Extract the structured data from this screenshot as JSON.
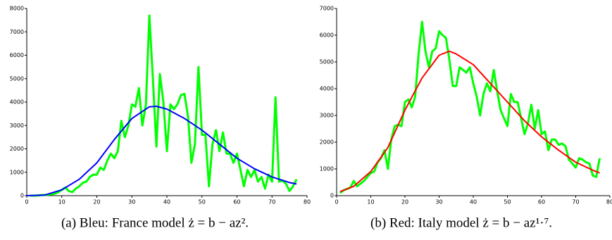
{
  "chart_data": [
    {
      "type": "line",
      "caption": "(a) Bleu: France model ż = b − az².",
      "xlim": [
        0,
        80
      ],
      "xticks": [
        0,
        10,
        20,
        30,
        40,
        50,
        60,
        70,
        80
      ],
      "ylim": [
        0,
        8000
      ],
      "yticks": [
        0,
        1000,
        2000,
        3000,
        4000,
        5000,
        6000,
        7000,
        8000
      ],
      "series": [
        {
          "color": "#0000ff",
          "x": [
            0,
            5,
            10,
            15,
            20,
            25,
            30,
            35,
            37,
            40,
            45,
            50,
            55,
            60,
            65,
            70,
            75,
            77
          ],
          "values": [
            0,
            20,
            250,
            700,
            1400,
            2400,
            3300,
            3800,
            3820,
            3700,
            3300,
            2800,
            2200,
            1600,
            1150,
            800,
            560,
            500
          ]
        },
        {
          "color": "#00ff00",
          "x": [
            1,
            2,
            3,
            4,
            5,
            6,
            7,
            8,
            9,
            10,
            11,
            12,
            13,
            14,
            15,
            16,
            17,
            18,
            19,
            20,
            21,
            22,
            23,
            24,
            25,
            26,
            27,
            28,
            29,
            30,
            31,
            32,
            33,
            34,
            35,
            36,
            37,
            38,
            39,
            40,
            41,
            42,
            43,
            44,
            45,
            46,
            47,
            48,
            49,
            50,
            51,
            52,
            53,
            54,
            55,
            56,
            57,
            58,
            59,
            60,
            61,
            62,
            63,
            64,
            65,
            66,
            67,
            68,
            69,
            70,
            71,
            72,
            73,
            74,
            75,
            76,
            77
          ],
          "values": [
            0,
            0,
            10,
            20,
            30,
            40,
            60,
            80,
            150,
            250,
            350,
            200,
            150,
            300,
            400,
            550,
            600,
            800,
            900,
            900,
            1200,
            1100,
            1500,
            1800,
            1600,
            1900,
            3200,
            2500,
            3000,
            3900,
            3800,
            4600,
            3000,
            3900,
            7700,
            5000,
            2100,
            5200,
            4000,
            1900,
            3900,
            3700,
            3900,
            4300,
            4350,
            3400,
            1400,
            2200,
            5500,
            2600,
            2600,
            400,
            2200,
            2800,
            1900,
            2700,
            1800,
            1800,
            1400,
            1800,
            1100,
            400,
            1100,
            800,
            1100,
            600,
            800,
            300,
            900,
            600,
            4200,
            600,
            650,
            500,
            200,
            400,
            700
          ]
        }
      ]
    },
    {
      "type": "line",
      "caption": "(b) Red: Italy model ż = b − az¹·⁷.",
      "xlim": [
        0,
        80
      ],
      "xticks": [
        0,
        10,
        20,
        30,
        40,
        50,
        60,
        70,
        80
      ],
      "ylim": [
        0,
        7000
      ],
      "yticks": [
        0,
        1000,
        2000,
        3000,
        4000,
        5000,
        6000,
        7000
      ],
      "series": [
        {
          "color": "#ff0000",
          "x": [
            1,
            5,
            10,
            15,
            20,
            25,
            30,
            33,
            35,
            40,
            45,
            50,
            55,
            60,
            65,
            70,
            75,
            77
          ],
          "values": [
            150,
            350,
            900,
            1800,
            3200,
            4400,
            5250,
            5400,
            5300,
            4900,
            4200,
            3500,
            2800,
            2200,
            1700,
            1250,
            950,
            850
          ]
        },
        {
          "color": "#00ff00",
          "x": [
            1,
            2,
            3,
            4,
            5,
            6,
            7,
            8,
            9,
            10,
            11,
            12,
            13,
            14,
            15,
            16,
            17,
            18,
            19,
            20,
            21,
            22,
            23,
            24,
            25,
            26,
            27,
            28,
            29,
            30,
            31,
            32,
            33,
            34,
            35,
            36,
            37,
            38,
            39,
            40,
            41,
            42,
            43,
            44,
            45,
            46,
            47,
            48,
            49,
            50,
            51,
            52,
            53,
            54,
            55,
            56,
            57,
            58,
            59,
            60,
            61,
            62,
            63,
            64,
            65,
            66,
            67,
            68,
            69,
            70,
            71,
            72,
            73,
            74,
            75,
            76,
            77
          ],
          "values": [
            100,
            200,
            250,
            300,
            550,
            350,
            450,
            550,
            700,
            850,
            900,
            1250,
            1400,
            1700,
            1000,
            2100,
            2600,
            2650,
            2600,
            3500,
            3600,
            3300,
            3700,
            5300,
            6500,
            5400,
            4800,
            5400,
            5500,
            6150,
            6000,
            5900,
            5100,
            4100,
            4100,
            4800,
            4700,
            4600,
            4800,
            4200,
            3700,
            3000,
            3800,
            4200,
            3900,
            4700,
            3900,
            3200,
            2900,
            2600,
            3800,
            3500,
            3500,
            2900,
            2300,
            2700,
            3400,
            2500,
            3200,
            2300,
            2400,
            1700,
            2100,
            2100,
            1900,
            1950,
            1850,
            1350,
            1200,
            1050,
            1400,
            1350,
            1250,
            1200,
            750,
            700,
            1400
          ]
        }
      ]
    }
  ]
}
